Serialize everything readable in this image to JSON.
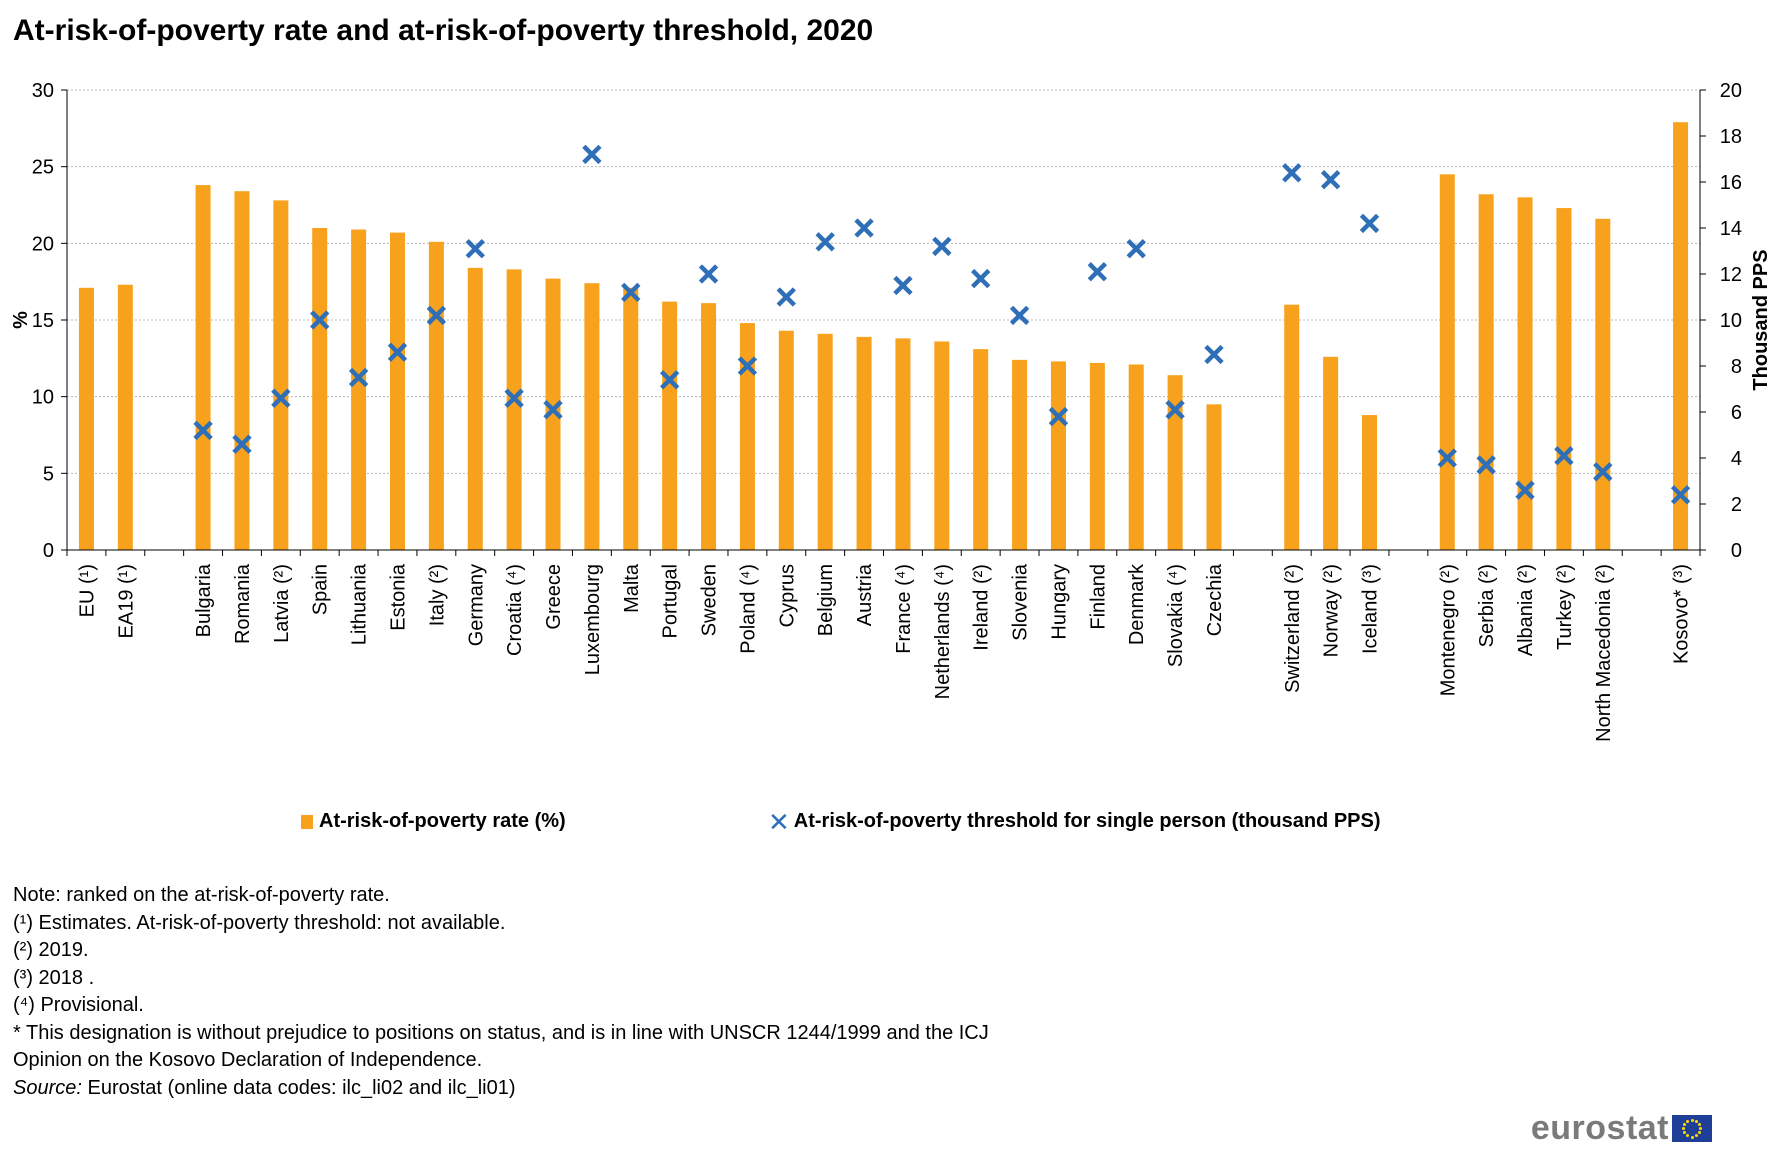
{
  "title": "At-risk-of-poverty rate and at-risk-of-poverty threshold, 2020",
  "chart_data": {
    "type": "bar+scatter",
    "categories": [
      "EU (¹)",
      "EA19 (¹)",
      "",
      "Bulgaria",
      "Romania",
      "Latvia (²)",
      "Spain",
      "Lithuania",
      "Estonia",
      "Italy (²)",
      "Germany",
      "Croatia (⁴)",
      "Greece",
      "Luxembourg",
      "Malta",
      "Portugal",
      "Sweden",
      "Poland (⁴)",
      "Cyprus",
      "Belgium",
      "Austria",
      "France (⁴)",
      "Netherlands (⁴)",
      "Ireland (²)",
      "Slovenia",
      "Hungary",
      "Finland",
      "Denmark",
      "Slovakia (⁴)",
      "Czechia",
      "",
      "Switzerland (²)",
      "Norway (²)",
      "Iceland (³)",
      "",
      "Montenegro (²)",
      "Serbia (²)",
      "Albania (²)",
      "Turkey (²)",
      "North Macedonia (²)",
      "",
      "Kosovo* (³)"
    ],
    "series": [
      {
        "name": "At-risk-of-poverty rate (%)",
        "axis": "left",
        "kind": "bar",
        "color": "#F7A11C",
        "values": [
          17.1,
          17.3,
          null,
          23.8,
          23.4,
          22.8,
          21.0,
          20.9,
          20.7,
          20.1,
          18.4,
          18.3,
          17.7,
          17.4,
          17.1,
          16.2,
          16.1,
          14.8,
          14.3,
          14.1,
          13.9,
          13.8,
          13.6,
          13.1,
          12.4,
          12.3,
          12.2,
          12.1,
          11.4,
          9.5,
          null,
          16.0,
          12.6,
          8.8,
          null,
          24.5,
          23.2,
          23.0,
          22.3,
          21.6,
          null,
          27.9
        ]
      },
      {
        "name": "At-risk-of-poverty threshold for single person (thousand PPS)",
        "axis": "right",
        "kind": "marker",
        "color": "#2E6FB7",
        "values": [
          null,
          null,
          null,
          5.2,
          4.6,
          6.6,
          10.0,
          7.5,
          8.6,
          10.2,
          13.1,
          6.6,
          6.1,
          17.2,
          11.2,
          7.4,
          12.0,
          8.0,
          11.0,
          13.4,
          14.0,
          11.5,
          13.2,
          11.8,
          10.2,
          5.8,
          12.1,
          13.1,
          6.1,
          8.5,
          null,
          16.4,
          16.1,
          14.2,
          null,
          4.0,
          3.7,
          2.6,
          4.1,
          3.4,
          null,
          2.4
        ]
      }
    ],
    "yleft": {
      "label": "%",
      "min": 0,
      "max": 30,
      "ticks": [
        0,
        5,
        10,
        15,
        20,
        25,
        30
      ]
    },
    "yright": {
      "label": "Thousand PPS",
      "min": 0,
      "max": 20,
      "ticks": [
        0,
        2,
        4,
        6,
        8,
        10,
        12,
        14,
        16,
        18,
        20
      ]
    },
    "grid": true,
    "legend_position": "bottom"
  },
  "legend": {
    "bar_label": "At-risk-of-poverty rate (%)",
    "marker_label": "At-risk-of-poverty threshold for single person (thousand PPS)"
  },
  "notes": {
    "note": "Note: ranked on the  at-risk-of-poverty rate.",
    "fn1": "(¹) Estimates. At-risk-of-poverty threshold: not available.",
    "fn2": "(²) 2019.",
    "fn3": "(³) 2018 .",
    "fn4": "(⁴) Provisional.",
    "kosovo1": "* This designation is without prejudice to positions on status, and is in line with UNSCR 1244/1999 and the ICJ",
    "kosovo2": "Opinion on the Kosovo Declaration of Independence.",
    "source_label": "Source:",
    "source_text": " Eurostat (online data codes: ilc_li02 and ilc_li01)"
  },
  "logo": {
    "text": "eurostat"
  }
}
